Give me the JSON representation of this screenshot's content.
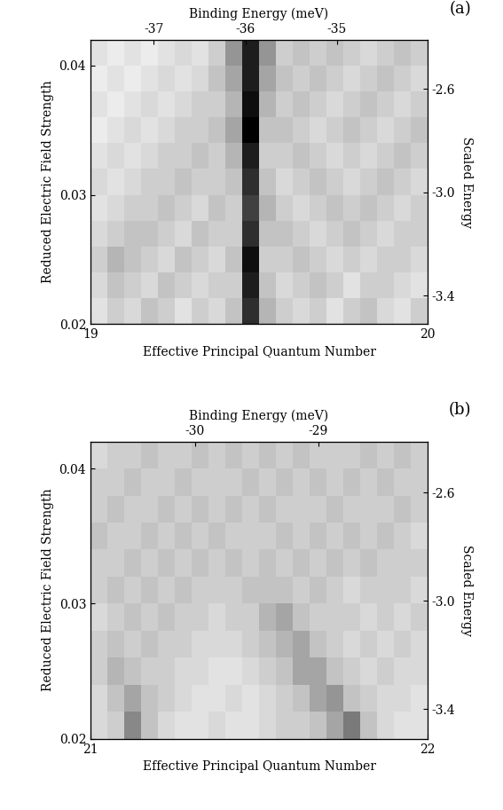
{
  "chart_data": [
    {
      "type": "heatmap",
      "title": "(a)",
      "x_label": "Effective Principal Quantum Number",
      "y_label": "Reduced Electric Field Strength",
      "x2_label": "Binding Energy (meV)",
      "y2_label": "Scaled Energy",
      "color": "Greys",
      "color_range": [
        0,
        1
      ],
      "xlim": [
        19,
        20
      ],
      "xticks": [
        19,
        20
      ],
      "ylim": [
        0.02,
        0.042
      ],
      "yticks": [
        0.02,
        0.03,
        0.04
      ],
      "x2lim": [
        -37.69,
        -34.01
      ],
      "x2ticks": [
        -37,
        -36,
        -35
      ],
      "y2lim": [
        -3.51,
        -2.41
      ],
      "y2ticks": [
        -3.4,
        -3.0,
        -2.6
      ],
      "x": [
        19.025,
        19.075,
        19.125,
        19.175,
        19.225,
        19.275,
        19.325,
        19.375,
        19.425,
        19.475,
        19.525,
        19.575,
        19.625,
        19.675,
        19.725,
        19.775,
        19.825,
        19.875,
        19.925,
        19.975
      ],
      "y": [
        0.021,
        0.023,
        0.025,
        0.027,
        0.029,
        0.031,
        0.033,
        0.035,
        0.037,
        0.039,
        0.041
      ],
      "cells": [
        [
          0.2,
          0.3,
          0.25,
          0.35,
          0.3,
          0.2,
          0.3,
          0.25,
          0.35,
          0.85,
          0.4,
          0.3,
          0.25,
          0.3,
          0.2,
          0.3,
          0.35,
          0.25,
          0.2,
          0.3
        ],
        [
          0.25,
          0.35,
          0.3,
          0.25,
          0.35,
          0.3,
          0.25,
          0.3,
          0.3,
          0.9,
          0.35,
          0.25,
          0.3,
          0.35,
          0.3,
          0.2,
          0.3,
          0.3,
          0.25,
          0.2
        ],
        [
          0.3,
          0.4,
          0.35,
          0.3,
          0.25,
          0.35,
          0.3,
          0.25,
          0.35,
          0.95,
          0.3,
          0.3,
          0.35,
          0.3,
          0.25,
          0.3,
          0.25,
          0.3,
          0.3,
          0.25
        ],
        [
          0.25,
          0.3,
          0.35,
          0.35,
          0.3,
          0.25,
          0.35,
          0.3,
          0.3,
          0.85,
          0.35,
          0.35,
          0.3,
          0.25,
          0.3,
          0.35,
          0.3,
          0.25,
          0.3,
          0.3
        ],
        [
          0.2,
          0.25,
          0.3,
          0.3,
          0.35,
          0.3,
          0.25,
          0.35,
          0.3,
          0.8,
          0.4,
          0.3,
          0.25,
          0.3,
          0.35,
          0.3,
          0.35,
          0.3,
          0.25,
          0.3
        ],
        [
          0.25,
          0.2,
          0.25,
          0.3,
          0.3,
          0.35,
          0.3,
          0.3,
          0.35,
          0.85,
          0.35,
          0.25,
          0.3,
          0.35,
          0.3,
          0.25,
          0.3,
          0.35,
          0.3,
          0.25
        ],
        [
          0.2,
          0.25,
          0.2,
          0.25,
          0.3,
          0.3,
          0.35,
          0.3,
          0.4,
          0.9,
          0.3,
          0.3,
          0.35,
          0.3,
          0.25,
          0.3,
          0.25,
          0.3,
          0.35,
          0.3
        ],
        [
          0.15,
          0.2,
          0.25,
          0.2,
          0.25,
          0.3,
          0.3,
          0.35,
          0.45,
          1.0,
          0.35,
          0.35,
          0.3,
          0.25,
          0.3,
          0.35,
          0.3,
          0.25,
          0.3,
          0.35
        ],
        [
          0.2,
          0.15,
          0.2,
          0.25,
          0.2,
          0.25,
          0.3,
          0.3,
          0.4,
          0.95,
          0.4,
          0.3,
          0.35,
          0.3,
          0.25,
          0.3,
          0.35,
          0.3,
          0.25,
          0.3
        ],
        [
          0.15,
          0.2,
          0.15,
          0.2,
          0.25,
          0.2,
          0.25,
          0.35,
          0.45,
          0.9,
          0.45,
          0.35,
          0.3,
          0.35,
          0.3,
          0.25,
          0.3,
          0.35,
          0.3,
          0.25
        ],
        [
          0.2,
          0.15,
          0.2,
          0.15,
          0.2,
          0.25,
          0.2,
          0.3,
          0.5,
          0.9,
          0.5,
          0.3,
          0.35,
          0.3,
          0.35,
          0.3,
          0.25,
          0.3,
          0.35,
          0.3
        ]
      ]
    },
    {
      "type": "heatmap",
      "title": "(b)",
      "x_label": "Effective Principal Quantum Number",
      "y_label": "Reduced Electric Field Strength",
      "x2_label": "Binding Energy (meV)",
      "y2_label": "Scaled Energy",
      "color": "Greys",
      "color_range": [
        0,
        1
      ],
      "xlim": [
        21,
        22
      ],
      "xticks": [
        21,
        22
      ],
      "ylim": [
        0.02,
        0.042
      ],
      "yticks": [
        0.02,
        0.03,
        0.04
      ],
      "x2lim": [
        -30.85,
        -28.11
      ],
      "x2ticks": [
        -30,
        -29
      ],
      "y2lim": [
        -3.51,
        -2.41
      ],
      "y2ticks": [
        -3.4,
        -3.0,
        -2.6
      ],
      "x": [
        21.025,
        21.075,
        21.125,
        21.175,
        21.225,
        21.275,
        21.325,
        21.375,
        21.425,
        21.475,
        21.525,
        21.575,
        21.625,
        21.675,
        21.725,
        21.775,
        21.825,
        21.875,
        21.925,
        21.975
      ],
      "y": [
        0.021,
        0.023,
        0.025,
        0.027,
        0.029,
        0.031,
        0.033,
        0.035,
        0.037,
        0.039,
        0.041
      ],
      "cells": [
        [
          0.25,
          0.3,
          0.55,
          0.35,
          0.25,
          0.2,
          0.2,
          0.25,
          0.2,
          0.2,
          0.25,
          0.3,
          0.3,
          0.35,
          0.45,
          0.6,
          0.35,
          0.25,
          0.2,
          0.2
        ],
        [
          0.25,
          0.35,
          0.45,
          0.35,
          0.3,
          0.25,
          0.2,
          0.2,
          0.25,
          0.2,
          0.25,
          0.3,
          0.35,
          0.45,
          0.5,
          0.35,
          0.3,
          0.25,
          0.25,
          0.2
        ],
        [
          0.3,
          0.4,
          0.35,
          0.3,
          0.3,
          0.25,
          0.25,
          0.2,
          0.2,
          0.25,
          0.3,
          0.35,
          0.45,
          0.45,
          0.35,
          0.3,
          0.25,
          0.3,
          0.25,
          0.25
        ],
        [
          0.3,
          0.35,
          0.3,
          0.35,
          0.3,
          0.3,
          0.25,
          0.25,
          0.25,
          0.3,
          0.35,
          0.4,
          0.45,
          0.35,
          0.3,
          0.25,
          0.3,
          0.25,
          0.3,
          0.25
        ],
        [
          0.25,
          0.3,
          0.35,
          0.3,
          0.35,
          0.3,
          0.3,
          0.25,
          0.3,
          0.3,
          0.4,
          0.45,
          0.35,
          0.3,
          0.3,
          0.3,
          0.25,
          0.3,
          0.25,
          0.3
        ],
        [
          0.3,
          0.35,
          0.3,
          0.35,
          0.3,
          0.35,
          0.3,
          0.3,
          0.3,
          0.35,
          0.35,
          0.35,
          0.3,
          0.35,
          0.3,
          0.25,
          0.3,
          0.3,
          0.3,
          0.25
        ],
        [
          0.3,
          0.3,
          0.35,
          0.3,
          0.35,
          0.3,
          0.35,
          0.3,
          0.35,
          0.3,
          0.35,
          0.3,
          0.35,
          0.3,
          0.35,
          0.3,
          0.35,
          0.3,
          0.3,
          0.3
        ],
        [
          0.35,
          0.3,
          0.3,
          0.35,
          0.3,
          0.35,
          0.3,
          0.35,
          0.3,
          0.3,
          0.3,
          0.35,
          0.3,
          0.35,
          0.3,
          0.35,
          0.3,
          0.35,
          0.3,
          0.25
        ],
        [
          0.3,
          0.35,
          0.3,
          0.3,
          0.35,
          0.3,
          0.35,
          0.3,
          0.35,
          0.3,
          0.35,
          0.3,
          0.3,
          0.3,
          0.35,
          0.3,
          0.3,
          0.3,
          0.35,
          0.3
        ],
        [
          0.3,
          0.3,
          0.35,
          0.3,
          0.3,
          0.35,
          0.3,
          0.3,
          0.3,
          0.35,
          0.3,
          0.35,
          0.3,
          0.35,
          0.3,
          0.35,
          0.3,
          0.35,
          0.3,
          0.3
        ],
        [
          0.25,
          0.3,
          0.3,
          0.35,
          0.3,
          0.3,
          0.35,
          0.3,
          0.35,
          0.3,
          0.35,
          0.3,
          0.35,
          0.3,
          0.3,
          0.3,
          0.35,
          0.3,
          0.35,
          0.3
        ]
      ]
    }
  ]
}
